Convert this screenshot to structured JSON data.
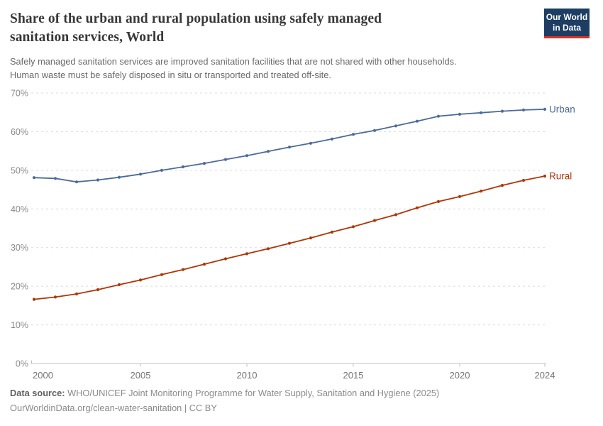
{
  "header": {
    "title": "Share of the urban and rural population using safely managed sanitation services, World",
    "title_lines": [
      "Share of the urban and rural population using safely managed",
      "sanitation services, World"
    ],
    "subtitle_lines": [
      "Safely managed sanitation services are improved sanitation facilities that are not shared with other households.",
      "Human waste must be safely disposed in situ or transported and treated off-site."
    ],
    "logo": {
      "line1": "Our World",
      "line2": "in Data",
      "bg_color": "#1D3D63",
      "accent_color": "#E0301E"
    }
  },
  "chart_data": {
    "type": "line",
    "title": "Share of the urban and rural population using safely managed sanitation services, World",
    "xlabel": "",
    "ylabel": "",
    "xlim": [
      2000,
      2024
    ],
    "ylim": [
      0,
      70
    ],
    "grid": "horizontal-dashed",
    "legend_position": "end-of-line-labels",
    "x": [
      2000,
      2001,
      2002,
      2003,
      2004,
      2005,
      2006,
      2007,
      2008,
      2009,
      2010,
      2011,
      2012,
      2013,
      2014,
      2015,
      2016,
      2017,
      2018,
      2019,
      2020,
      2021,
      2022,
      2023,
      2024
    ],
    "series": [
      {
        "name": "Urban",
        "color": "#4C6A9C",
        "values": [
          48.1,
          47.9,
          47.0,
          47.5,
          48.2,
          49.0,
          50.0,
          50.9,
          51.8,
          52.8,
          53.8,
          54.9,
          56.0,
          57.0,
          58.1,
          59.3,
          60.3,
          61.5,
          62.7,
          64.0,
          64.5,
          64.9,
          65.3,
          65.6,
          65.8
        ]
      },
      {
        "name": "Rural",
        "color": "#B13507",
        "values": [
          16.6,
          17.2,
          18.0,
          19.1,
          20.4,
          21.6,
          23.0,
          24.3,
          25.7,
          27.1,
          28.4,
          29.7,
          31.1,
          32.5,
          34.0,
          35.4,
          37.0,
          38.5,
          40.3,
          41.9,
          43.2,
          44.6,
          46.1,
          47.4,
          48.5
        ]
      }
    ],
    "y_ticks": [
      {
        "v": 0,
        "label": "0%"
      },
      {
        "v": 10,
        "label": "10%"
      },
      {
        "v": 20,
        "label": "20%"
      },
      {
        "v": 30,
        "label": "30%"
      },
      {
        "v": 40,
        "label": "40%"
      },
      {
        "v": 50,
        "label": "50%"
      },
      {
        "v": 60,
        "label": "60%"
      },
      {
        "v": 70,
        "label": "70%"
      }
    ],
    "x_ticks": [
      {
        "v": 2000,
        "label": "2000"
      },
      {
        "v": 2005,
        "label": "2005"
      },
      {
        "v": 2010,
        "label": "2010"
      },
      {
        "v": 2015,
        "label": "2015"
      },
      {
        "v": 2020,
        "label": "2020"
      },
      {
        "v": 2024,
        "label": "2024"
      }
    ]
  },
  "footer": {
    "source_label": "Data source:",
    "source_text": " WHO/UNICEF Joint Monitoring Programme for Water Supply, Sanitation and Hygiene (2025)",
    "link_text": "OurWorldinData.org/clean-water-sanitation",
    "license_text": " | CC BY"
  }
}
